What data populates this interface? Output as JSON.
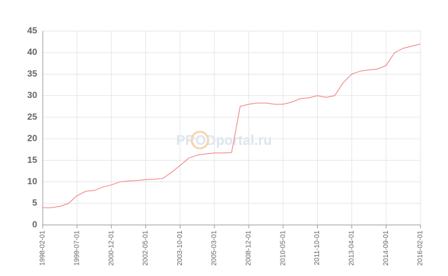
{
  "chart_data": {
    "type": "line",
    "watermark": "PRODportal.ru",
    "categories": [
      "1998-02-01",
      null,
      null,
      null,
      "1999-07-01",
      null,
      null,
      null,
      "2000-12-01",
      null,
      null,
      null,
      "2002-05-01",
      null,
      null,
      null,
      "2003-10-01",
      null,
      null,
      null,
      "2005-03-01",
      null,
      null,
      null,
      "2008-12-01",
      null,
      null,
      null,
      "2010-05-01",
      null,
      null,
      null,
      "2011-10-01",
      null,
      null,
      null,
      "2013-04-01",
      null,
      null,
      null,
      "2014-09-01",
      null,
      null,
      null,
      "2016-02-01"
    ],
    "series": [
      {
        "color": "#f07878",
        "values": [
          4.0,
          4.0,
          4.3,
          5.0,
          6.8,
          7.8,
          8.0,
          8.8,
          9.3,
          10.0,
          10.2,
          10.3,
          10.5,
          10.6,
          10.8,
          12.2,
          13.8,
          15.5,
          16.2,
          16.5,
          16.7,
          16.7,
          16.8,
          27.5,
          28.0,
          28.3,
          28.3,
          28.0,
          28.0,
          28.5,
          29.3,
          29.5,
          30.0,
          29.6,
          30.0,
          33.0,
          35.0,
          35.7,
          36.0,
          36.2,
          37.0,
          40.0,
          41.0,
          41.5,
          42.0
        ]
      }
    ],
    "ylim": [
      0,
      45
    ],
    "yticks": [
      0,
      5,
      10,
      15,
      20,
      25,
      30,
      35,
      40,
      45
    ],
    "grid": true
  }
}
